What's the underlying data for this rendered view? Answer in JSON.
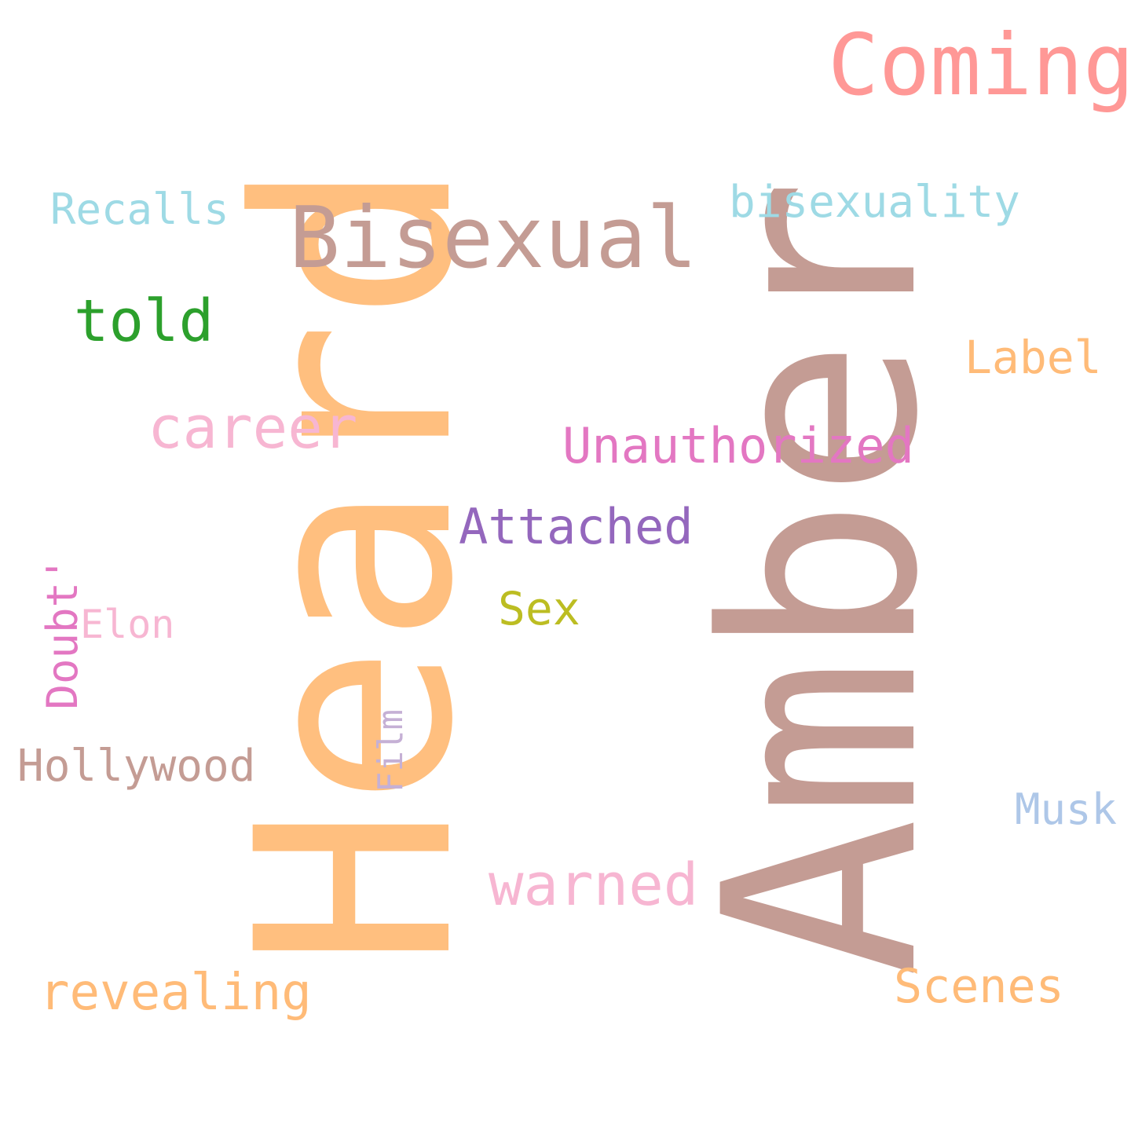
{
  "words": [
    {
      "id": "heard",
      "text": "Heard",
      "color": "#ffbf7f",
      "orientation": "vertical"
    },
    {
      "id": "amber",
      "text": "Amber",
      "color": "#c49c94",
      "orientation": "vertical"
    },
    {
      "id": "coming",
      "text": "Coming",
      "color": "#ff9896",
      "orientation": "horizontal"
    },
    {
      "id": "bisexual",
      "text": "Bisexual",
      "color": "#c49c94",
      "orientation": "horizontal"
    },
    {
      "id": "bisexuality",
      "text": "bisexuality",
      "color": "#9edae5",
      "orientation": "horizontal"
    },
    {
      "id": "recalls",
      "text": "Recalls",
      "color": "#9edae5",
      "orientation": "horizontal"
    },
    {
      "id": "told",
      "text": "told",
      "color": "#2ca02c",
      "orientation": "horizontal"
    },
    {
      "id": "label",
      "text": "Label",
      "color": "#ffbb78",
      "orientation": "horizontal"
    },
    {
      "id": "career",
      "text": "career",
      "color": "#f7b6d2",
      "orientation": "horizontal"
    },
    {
      "id": "unauthorized",
      "text": "Unauthorized",
      "color": "#e377c2",
      "orientation": "horizontal"
    },
    {
      "id": "attached",
      "text": "Attached",
      "color": "#9467bd",
      "orientation": "horizontal"
    },
    {
      "id": "doubt",
      "text": "Doubt'",
      "color": "#e377c2",
      "orientation": "vertical"
    },
    {
      "id": "elon",
      "text": "Elon",
      "color": "#f7b6d2",
      "orientation": "horizontal"
    },
    {
      "id": "sex",
      "text": "Sex",
      "color": "#bcbd22",
      "orientation": "horizontal"
    },
    {
      "id": "film",
      "text": "Film",
      "color": "#c5b0d5",
      "orientation": "vertical"
    },
    {
      "id": "hollywood",
      "text": "Hollywood",
      "color": "#c49c94",
      "orientation": "horizontal"
    },
    {
      "id": "musk",
      "text": "Musk",
      "color": "#aec7e8",
      "orientation": "horizontal"
    },
    {
      "id": "warned",
      "text": "warned",
      "color": "#f7b6d2",
      "orientation": "horizontal"
    },
    {
      "id": "revealing",
      "text": "revealing",
      "color": "#ffbb78",
      "orientation": "horizontal"
    },
    {
      "id": "scenes",
      "text": "Scenes",
      "color": "#ffbb78",
      "orientation": "horizontal"
    }
  ]
}
